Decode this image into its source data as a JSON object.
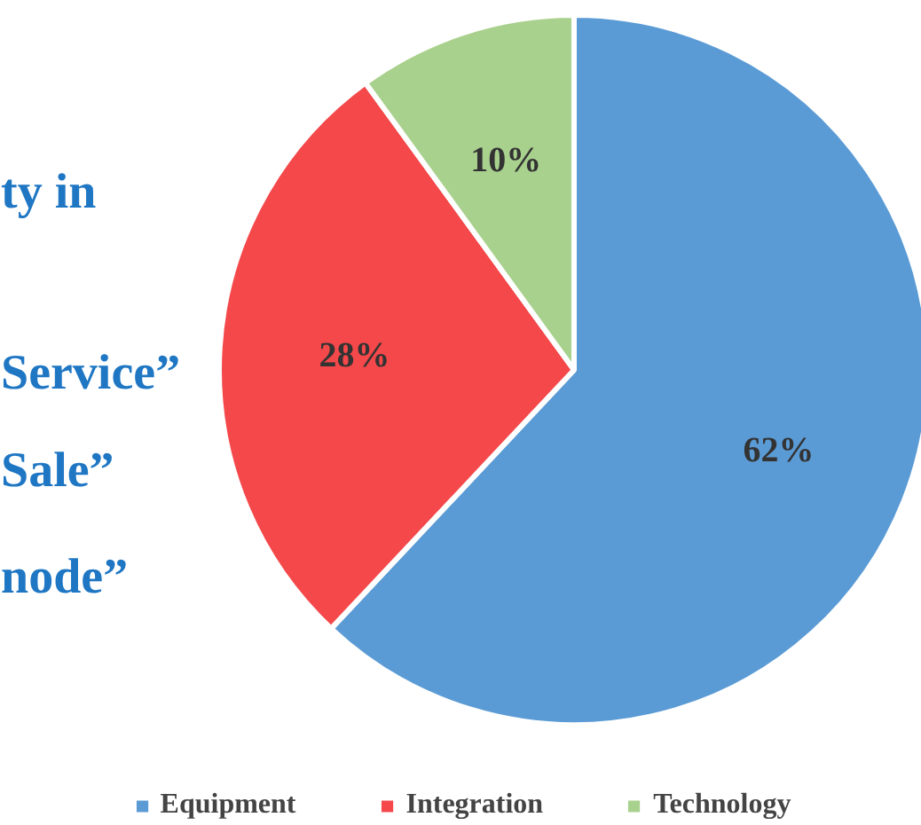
{
  "chart_data": {
    "type": "pie",
    "categories": [
      "Equipment",
      "Integration",
      "Technology"
    ],
    "values": [
      62,
      28,
      10
    ],
    "colors": [
      "#5b9bd5",
      "#f4484a",
      "#a9d18e"
    ],
    "value_labels": [
      "62%",
      "28%",
      "10%"
    ],
    "legend": "bottom",
    "annotations": [
      "ty in",
      "Service”",
      "Sale”",
      "node”"
    ]
  }
}
